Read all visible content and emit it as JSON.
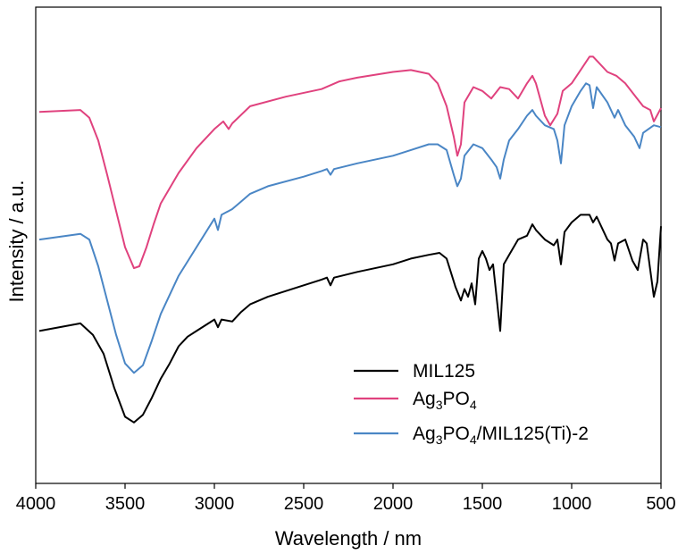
{
  "chart_data": {
    "type": "line",
    "xlabel": "Wavelength / nm",
    "ylabel": "Intensity / a.u.",
    "xlim": [
      4000,
      500
    ],
    "x_reversed": true,
    "y_ticks_shown": false,
    "xticks": [
      4000,
      3500,
      3000,
      2500,
      2000,
      1500,
      1000,
      500
    ],
    "legend_position": "bottom-right",
    "series": [
      {
        "name": "MIL125",
        "color": "#000000",
        "points": [
          [
            3980,
            80
          ],
          [
            3750,
            84
          ],
          [
            3680,
            78
          ],
          [
            3620,
            68
          ],
          [
            3560,
            50
          ],
          [
            3500,
            35
          ],
          [
            3450,
            32
          ],
          [
            3400,
            36
          ],
          [
            3350,
            45
          ],
          [
            3300,
            55
          ],
          [
            3250,
            63
          ],
          [
            3200,
            72
          ],
          [
            3150,
            77
          ],
          [
            3100,
            80
          ],
          [
            3050,
            83
          ],
          [
            3000,
            86
          ],
          [
            2980,
            82
          ],
          [
            2960,
            86
          ],
          [
            2900,
            85
          ],
          [
            2850,
            90
          ],
          [
            2800,
            94
          ],
          [
            2700,
            98
          ],
          [
            2600,
            101
          ],
          [
            2500,
            104
          ],
          [
            2400,
            107
          ],
          [
            2370,
            108
          ],
          [
            2350,
            104
          ],
          [
            2330,
            108
          ],
          [
            2200,
            111
          ],
          [
            2000,
            115
          ],
          [
            1900,
            118
          ],
          [
            1800,
            120
          ],
          [
            1740,
            121
          ],
          [
            1700,
            118
          ],
          [
            1680,
            112
          ],
          [
            1650,
            103
          ],
          [
            1620,
            96
          ],
          [
            1600,
            102
          ],
          [
            1580,
            98
          ],
          [
            1560,
            105
          ],
          [
            1540,
            94
          ],
          [
            1520,
            118
          ],
          [
            1500,
            122
          ],
          [
            1480,
            118
          ],
          [
            1460,
            112
          ],
          [
            1440,
            115
          ],
          [
            1400,
            80
          ],
          [
            1380,
            115
          ],
          [
            1350,
            120
          ],
          [
            1300,
            128
          ],
          [
            1250,
            130
          ],
          [
            1220,
            136
          ],
          [
            1200,
            133
          ],
          [
            1150,
            128
          ],
          [
            1100,
            125
          ],
          [
            1080,
            128
          ],
          [
            1060,
            115
          ],
          [
            1040,
            132
          ],
          [
            1000,
            137
          ],
          [
            950,
            141
          ],
          [
            900,
            141
          ],
          [
            880,
            137
          ],
          [
            860,
            140
          ],
          [
            840,
            136
          ],
          [
            800,
            128
          ],
          [
            780,
            126
          ],
          [
            760,
            117
          ],
          [
            740,
            126
          ],
          [
            700,
            128
          ],
          [
            660,
            117
          ],
          [
            630,
            112
          ],
          [
            600,
            128
          ],
          [
            580,
            126
          ],
          [
            540,
            98
          ],
          [
            520,
            106
          ],
          [
            500,
            135
          ]
        ]
      },
      {
        "name": "Ag3PO4",
        "color": "#e0427e",
        "points": [
          [
            3980,
            195
          ],
          [
            3750,
            196
          ],
          [
            3700,
            192
          ],
          [
            3650,
            180
          ],
          [
            3600,
            162
          ],
          [
            3550,
            143
          ],
          [
            3500,
            124
          ],
          [
            3450,
            113
          ],
          [
            3420,
            114
          ],
          [
            3380,
            124
          ],
          [
            3340,
            136
          ],
          [
            3300,
            147
          ],
          [
            3200,
            163
          ],
          [
            3100,
            176
          ],
          [
            3000,
            186
          ],
          [
            2950,
            190
          ],
          [
            2920,
            186
          ],
          [
            2900,
            189
          ],
          [
            2800,
            198
          ],
          [
            2600,
            203
          ],
          [
            2400,
            207
          ],
          [
            2300,
            211
          ],
          [
            2200,
            213
          ],
          [
            2000,
            216
          ],
          [
            1900,
            217
          ],
          [
            1850,
            216
          ],
          [
            1800,
            215
          ],
          [
            1750,
            210
          ],
          [
            1700,
            198
          ],
          [
            1660,
            182
          ],
          [
            1640,
            172
          ],
          [
            1620,
            178
          ],
          [
            1600,
            200
          ],
          [
            1550,
            208
          ],
          [
            1500,
            206
          ],
          [
            1450,
            202
          ],
          [
            1400,
            208
          ],
          [
            1350,
            207
          ],
          [
            1300,
            202
          ],
          [
            1250,
            210
          ],
          [
            1220,
            214
          ],
          [
            1200,
            210
          ],
          [
            1150,
            193
          ],
          [
            1120,
            188
          ],
          [
            1080,
            194
          ],
          [
            1050,
            206
          ],
          [
            1000,
            210
          ],
          [
            950,
            217
          ],
          [
            900,
            224
          ],
          [
            880,
            224
          ],
          [
            850,
            221
          ],
          [
            800,
            216
          ],
          [
            750,
            214
          ],
          [
            700,
            210
          ],
          [
            650,
            204
          ],
          [
            600,
            198
          ],
          [
            560,
            196
          ],
          [
            540,
            190
          ],
          [
            500,
            197
          ]
        ]
      },
      {
        "name": "Ag3PO4/MIL125(Ti)-2",
        "color": "#4a86c5",
        "points": [
          [
            3980,
            128
          ],
          [
            3750,
            131
          ],
          [
            3700,
            128
          ],
          [
            3650,
            114
          ],
          [
            3600,
            96
          ],
          [
            3550,
            78
          ],
          [
            3500,
            63
          ],
          [
            3450,
            58
          ],
          [
            3400,
            62
          ],
          [
            3350,
            75
          ],
          [
            3300,
            89
          ],
          [
            3200,
            109
          ],
          [
            3100,
            124
          ],
          [
            3000,
            139
          ],
          [
            2980,
            133
          ],
          [
            2960,
            141
          ],
          [
            2900,
            144
          ],
          [
            2850,
            148
          ],
          [
            2800,
            152
          ],
          [
            2700,
            156
          ],
          [
            2500,
            161
          ],
          [
            2400,
            164
          ],
          [
            2370,
            165
          ],
          [
            2350,
            162
          ],
          [
            2330,
            165
          ],
          [
            2200,
            168
          ],
          [
            2000,
            172
          ],
          [
            1900,
            175
          ],
          [
            1800,
            178
          ],
          [
            1750,
            178
          ],
          [
            1700,
            175
          ],
          [
            1660,
            162
          ],
          [
            1640,
            156
          ],
          [
            1620,
            160
          ],
          [
            1600,
            172
          ],
          [
            1550,
            178
          ],
          [
            1500,
            176
          ],
          [
            1450,
            170
          ],
          [
            1420,
            166
          ],
          [
            1400,
            160
          ],
          [
            1380,
            170
          ],
          [
            1350,
            180
          ],
          [
            1300,
            186
          ],
          [
            1250,
            193
          ],
          [
            1220,
            196
          ],
          [
            1200,
            193
          ],
          [
            1150,
            188
          ],
          [
            1100,
            186
          ],
          [
            1080,
            180
          ],
          [
            1060,
            168
          ],
          [
            1040,
            188
          ],
          [
            1000,
            198
          ],
          [
            950,
            206
          ],
          [
            920,
            210
          ],
          [
            900,
            209
          ],
          [
            880,
            197
          ],
          [
            860,
            208
          ],
          [
            800,
            200
          ],
          [
            760,
            192
          ],
          [
            740,
            196
          ],
          [
            700,
            188
          ],
          [
            650,
            182
          ],
          [
            620,
            176
          ],
          [
            600,
            184
          ],
          [
            540,
            188
          ],
          [
            500,
            187
          ]
        ]
      }
    ]
  }
}
